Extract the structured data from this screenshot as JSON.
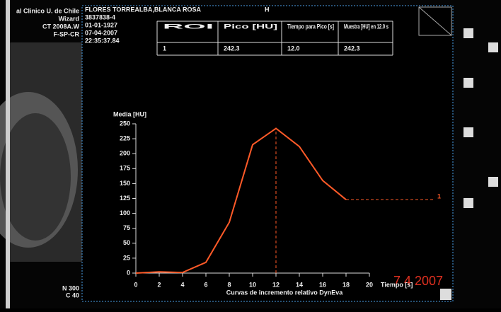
{
  "site": [
    "al Clinico U. de Chile",
    "Wizard",
    "CT 2008A.W",
    "F-SP-CR"
  ],
  "patient": {
    "name": "FLORES TORREALBA,BLANCA ROSA",
    "sex": "H",
    "lines": [
      "3837838-4",
      "01-01-1927",
      "07-04-2007",
      "22:35:37.84"
    ]
  },
  "table": {
    "header": [
      "ROI",
      "Pico [HU]",
      "Tiempo para Pico [s]",
      "Muestra [HU] en 12.0 s"
    ],
    "rows": [
      [
        "1",
        "242.3",
        "12.0",
        "242.3"
      ]
    ]
  },
  "window": [
    "N 300",
    "C 40"
  ],
  "date_stamp": "7  4  2007",
  "chart_data": {
    "type": "line",
    "y_label": "Media [HU]",
    "x_label": "Tiempo [s]",
    "caption": "Curvas de incremento relativo DynEva",
    "x": [
      0,
      2,
      4,
      6,
      8,
      10,
      12,
      14,
      16,
      18
    ],
    "series": [
      {
        "name": "1",
        "color": "#ff5a28",
        "values": [
          0,
          2,
          1,
          18,
          85,
          215,
          242.3,
          212,
          155,
          123
        ]
      }
    ],
    "xlim": [
      0,
      20
    ],
    "xticks": [
      0,
      2,
      4,
      6,
      8,
      10,
      12,
      14,
      16,
      18,
      20
    ],
    "ylim": [
      0,
      250
    ],
    "yticks": [
      0,
      25,
      50,
      75,
      100,
      125,
      150,
      175,
      200,
      225,
      250
    ]
  }
}
